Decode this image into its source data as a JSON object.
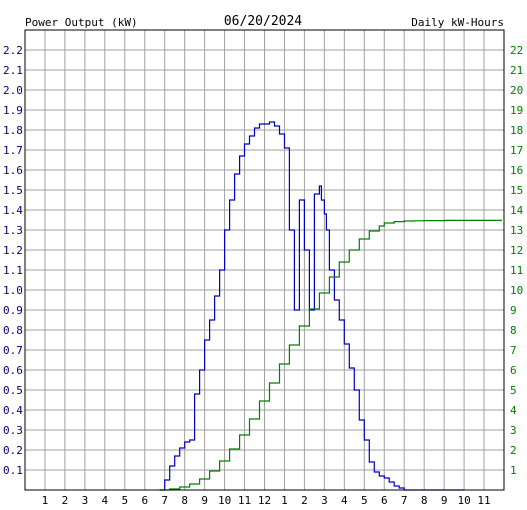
{
  "chart_data": {
    "type": "line",
    "title": "06/20/2024",
    "left_axis_label": "Power Output (kW)",
    "right_axis_label": "Daily kW-Hours",
    "colors": {
      "power": "#0000c0",
      "energy": "#008000",
      "left_axis": "#000080",
      "right_axis": "#008000",
      "grid": "#a0a0a0",
      "frame": "#000000"
    },
    "x_ticks": [
      "1",
      "2",
      "3",
      "4",
      "5",
      "6",
      "7",
      "8",
      "9",
      "10",
      "11",
      "12",
      "1",
      "2",
      "3",
      "4",
      "5",
      "6",
      "7",
      "8",
      "9",
      "10",
      "11"
    ],
    "x_range_hours": [
      0,
      24
    ],
    "left_ylim": [
      0,
      2.3
    ],
    "left_ticks": [
      "0.1",
      "0.2",
      "0.3",
      "0.4",
      "0.5",
      "0.6",
      "0.7",
      "0.8",
      "0.9",
      "1.0",
      "1.1",
      "1.2",
      "1.3",
      "1.4",
      "1.5",
      "1.6",
      "1.7",
      "1.8",
      "1.9",
      "2.0",
      "2.1",
      "2.2"
    ],
    "right_ylim": [
      0,
      23
    ],
    "right_ticks": [
      "1",
      "2",
      "3",
      "4",
      "5",
      "6",
      "7",
      "8",
      "9",
      "10",
      "11",
      "12",
      "13",
      "14",
      "15",
      "16",
      "17",
      "18",
      "19",
      "20",
      "21",
      "22"
    ],
    "grid": true,
    "series": [
      {
        "name": "Power Output (kW)",
        "axis": "left",
        "x": [
          6.75,
          7.0,
          7.25,
          7.5,
          7.75,
          8.0,
          8.25,
          8.5,
          8.75,
          9.0,
          9.25,
          9.5,
          9.75,
          10.0,
          10.25,
          10.5,
          10.75,
          11.0,
          11.25,
          11.5,
          11.75,
          12.0,
          12.25,
          12.5,
          12.75,
          13.0,
          13.25,
          13.5,
          13.75,
          14.0,
          14.25,
          14.5,
          14.75,
          14.85,
          15.0,
          15.1,
          15.25,
          15.5,
          15.75,
          16.0,
          16.25,
          16.5,
          16.75,
          17.0,
          17.25,
          17.5,
          17.75,
          18.0,
          18.25,
          18.5,
          18.75,
          19.0,
          19.25,
          19.5,
          19.75,
          20.0,
          20.25,
          20.5,
          20.75,
          21.0,
          21.25,
          21.5,
          22.0
        ],
        "y": [
          0.0,
          0.05,
          0.12,
          0.17,
          0.21,
          0.24,
          0.25,
          0.48,
          0.6,
          0.75,
          0.85,
          0.97,
          1.1,
          1.3,
          1.45,
          1.58,
          1.67,
          1.73,
          1.77,
          1.81,
          1.83,
          1.83,
          1.84,
          1.82,
          1.78,
          1.71,
          1.3,
          0.9,
          1.45,
          1.2,
          0.9,
          1.48,
          1.52,
          1.45,
          1.38,
          1.3,
          1.1,
          0.95,
          0.85,
          0.73,
          0.61,
          0.5,
          0.35,
          0.25,
          0.14,
          0.09,
          0.07,
          0.06,
          0.04,
          0.02,
          0.01,
          0.0,
          0.0,
          0.0,
          0.0,
          0.0,
          0.0,
          0.0,
          0.0,
          0.0,
          0.0,
          0.0,
          0.0
        ]
      },
      {
        "name": "Daily kW-Hours",
        "axis": "right",
        "x": [
          6.75,
          7.25,
          7.75,
          8.25,
          8.75,
          9.25,
          9.75,
          10.25,
          10.75,
          11.25,
          11.75,
          12.25,
          12.75,
          13.25,
          13.75,
          14.25,
          14.75,
          15.25,
          15.75,
          16.25,
          16.75,
          17.25,
          17.75,
          18.0,
          18.5,
          19.0,
          19.5,
          20.0,
          21.0,
          22.0,
          23.0,
          23.9
        ],
        "y": [
          0.0,
          0.05,
          0.15,
          0.3,
          0.55,
          0.95,
          1.45,
          2.05,
          2.75,
          3.55,
          4.45,
          5.35,
          6.3,
          7.25,
          8.2,
          9.05,
          9.85,
          10.65,
          11.4,
          12.0,
          12.55,
          12.95,
          13.2,
          13.35,
          13.42,
          13.45,
          13.46,
          13.47,
          13.48,
          13.48,
          13.48,
          13.48
        ]
      }
    ]
  }
}
